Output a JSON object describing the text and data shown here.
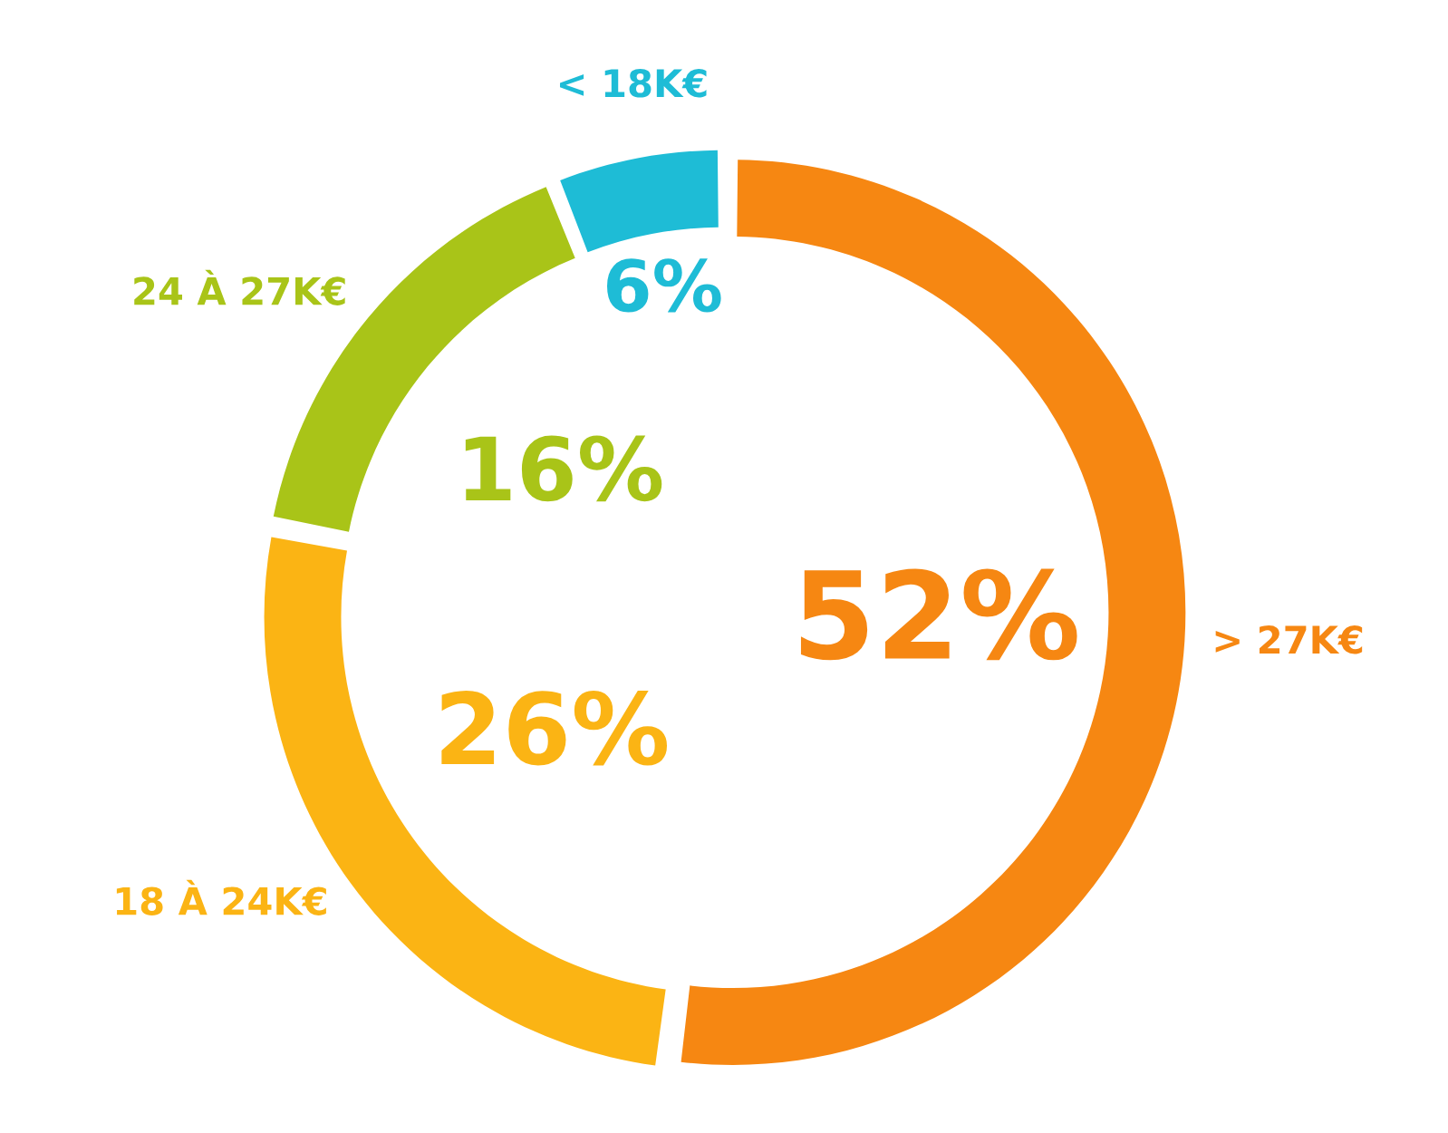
{
  "chart_data": {
    "type": "donut",
    "categories": [
      "> 27K€",
      "18 À 24K€",
      "24 À 27K€",
      "< 18K€"
    ],
    "values": [
      52,
      26,
      16,
      6
    ],
    "value_labels": [
      "52%",
      "26%",
      "16%",
      "6%"
    ],
    "colors": [
      "#f68712",
      "#fbb414",
      "#a9c418",
      "#1ebcd6"
    ]
  }
}
